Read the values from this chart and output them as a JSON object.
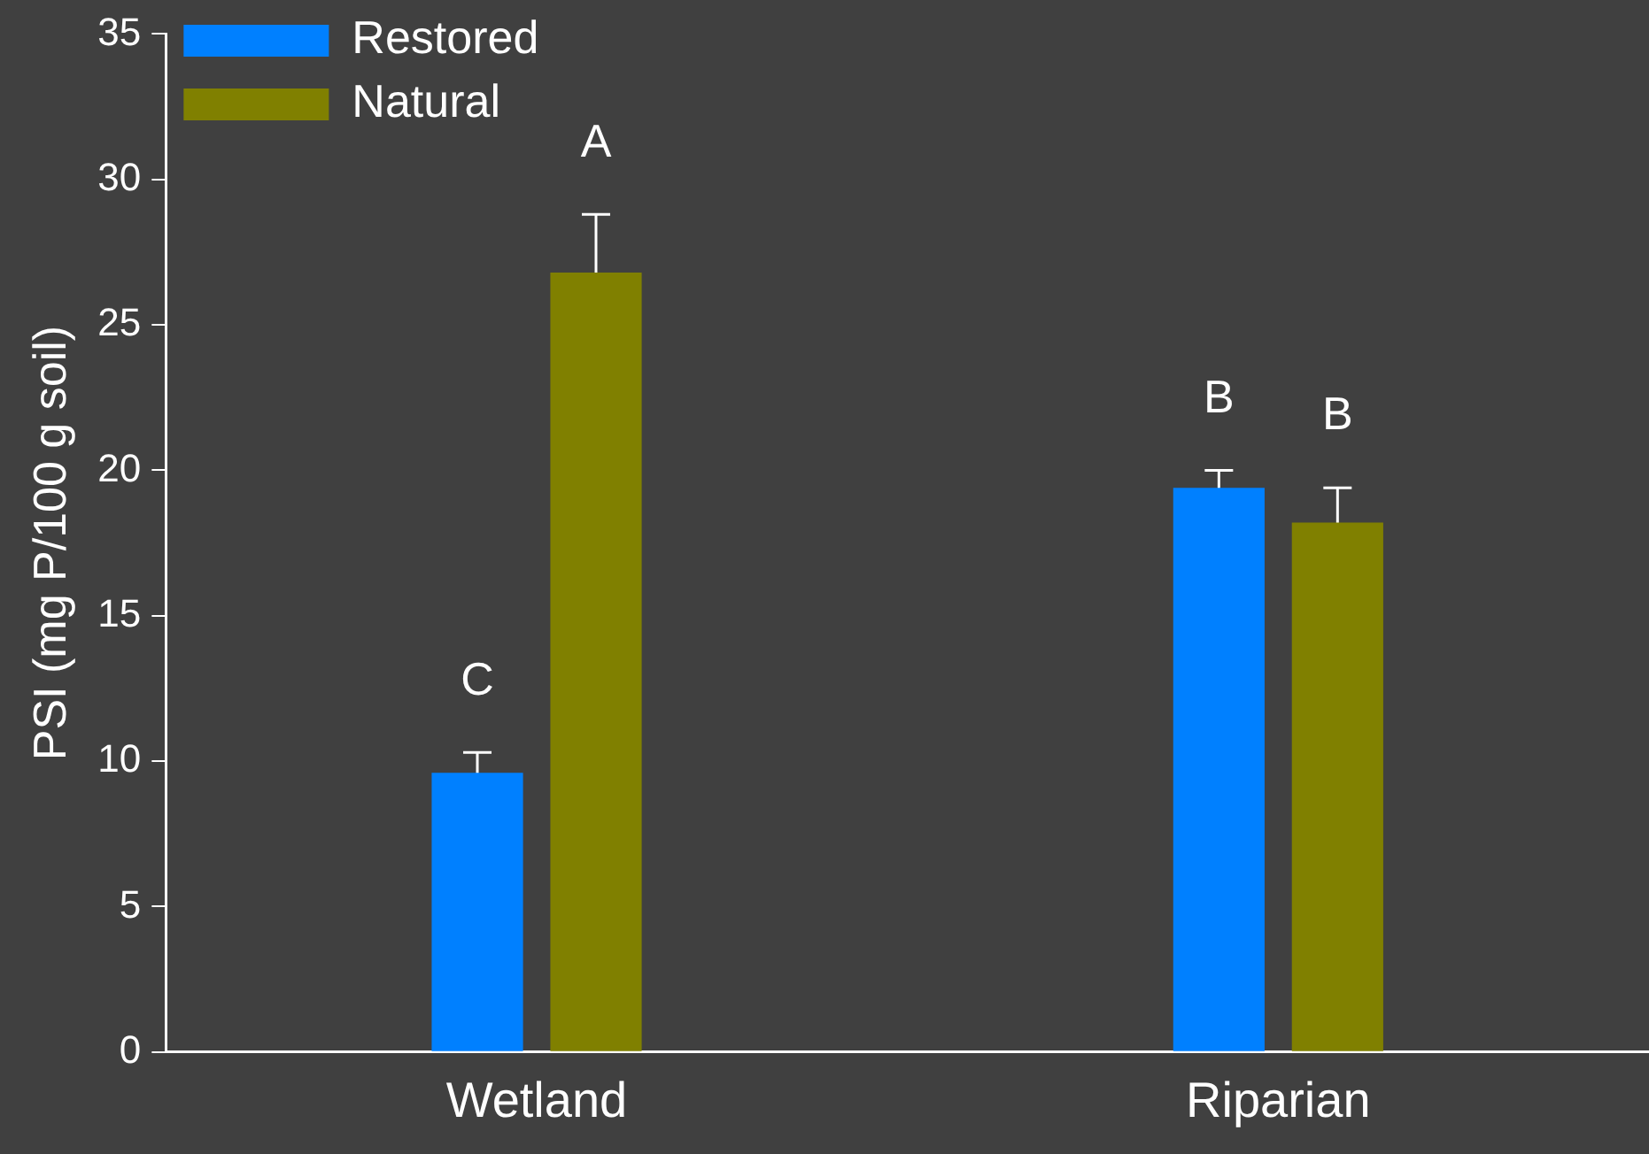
{
  "chart_data": {
    "type": "bar",
    "ylabel": "PSI (mg P/100 g soil)",
    "categories": [
      "Wetland",
      "Riparian"
    ],
    "series": [
      {
        "name": "Restored",
        "color": "#0080ff",
        "values": [
          9.6,
          19.4
        ],
        "errors": [
          0.7,
          0.6
        ]
      },
      {
        "name": "Natural",
        "color": "#808000",
        "values": [
          26.8,
          18.2
        ],
        "errors": [
          2.0,
          1.2
        ]
      }
    ],
    "ylim": [
      0,
      35
    ],
    "yticks": [
      0,
      5,
      10,
      15,
      20,
      25,
      30,
      35
    ],
    "grid": false,
    "legend": "top left",
    "annotations": [
      "C",
      "A",
      "B",
      "B"
    ]
  }
}
